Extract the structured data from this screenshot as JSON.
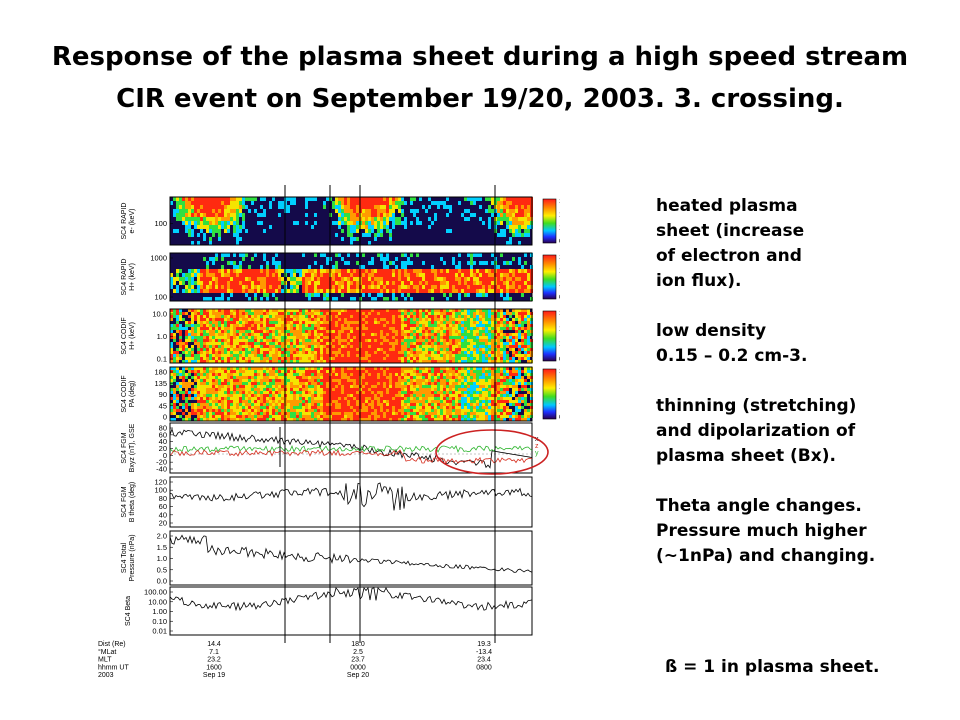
{
  "title": {
    "line1": "Response of the plasma sheet during a high speed stream",
    "line2": "CIR event on September 19/20, 2003. 3. crossing."
  },
  "notes": [
    {
      "lines": [
        "heated plasma",
        "sheet (increase",
        "of electron and",
        "ion flux)."
      ]
    },
    {
      "lines": [
        "low density",
        "0.15 – 0.2 cm-3."
      ]
    },
    {
      "lines": [
        "thinning (stretching)",
        "and dipolarization of",
        "plasma sheet (Bx)."
      ]
    },
    {
      "lines": [
        "Theta angle changes.",
        "Pressure much higher",
        "(~1nPa) and changing."
      ]
    }
  ],
  "beta_note": "ß = 1 in plasma sheet.",
  "figure": {
    "panels": [
      {
        "label": [
          "SC4 RAPID",
          "e- (keV)"
        ],
        "kind": "spectrogram",
        "ticks": [
          "100"
        ],
        "colorbar": {
          "ticks": [
            "100.0",
            "10.0",
            "1.0",
            "0.1"
          ],
          "unit": "ccm²-s-sr-keV"
        }
      },
      {
        "label": [
          "SC4 RAPID",
          "H+ (keV)"
        ],
        "kind": "spectrogram",
        "ticks": [
          "1000",
          "100"
        ],
        "colorbar": {
          "ticks": [
            "100.0",
            "10.0",
            "1.0",
            "0.1"
          ],
          "unit": "ccm²-s-sr-keV"
        }
      },
      {
        "label": [
          "SC4 CODIF",
          "H+ (keV)"
        ],
        "kind": "spectrogram",
        "ticks": [
          "10.0",
          "1.0",
          "0.1"
        ],
        "colorbar": {
          "ticks": [
            "100.0",
            "10.0",
            "1.0",
            "0.1"
          ],
          "unit": "ccm²-s-sr-keV"
        }
      },
      {
        "label": [
          "SC4 CODIF",
          "PA (deg)"
        ],
        "kind": "spectrogram",
        "ticks": [
          "180",
          "135",
          "90",
          "45",
          "0"
        ],
        "colorbar": {
          "ticks": [
            "100.0",
            "10.0",
            "1.0",
            "0.1"
          ],
          "unit": "ccm²-s-sr-keV"
        }
      },
      {
        "label": [
          "SC4 FGM",
          "Bxyz (nT), GSE"
        ],
        "kind": "line",
        "ticks": [
          "80",
          "60",
          "40",
          "20",
          "0",
          "-20",
          "-40"
        ],
        "side_labels": [
          "x",
          "z",
          "y"
        ]
      },
      {
        "label": [
          "SC4 FGM",
          "B theta (deg)"
        ],
        "kind": "line",
        "ticks": [
          "120",
          "100",
          "80",
          "60",
          "40",
          "20"
        ]
      },
      {
        "label": [
          "SC4 Total",
          "Pressure (nPa)"
        ],
        "kind": "line",
        "ticks": [
          "2.0",
          "1.5",
          "1.0",
          "0.5",
          "0.0"
        ]
      },
      {
        "label": [
          "SC4 Beta"
        ],
        "kind": "line",
        "ticks": [
          "100.00",
          "10.00",
          "1.00",
          "0.10",
          "0.01"
        ]
      }
    ],
    "footer_labels": [
      "Dist (Re)",
      "°MLat",
      "MLT",
      "hhmm UT",
      "2003"
    ],
    "footer_columns": [
      {
        "values": [
          "14.4",
          "7.1",
          "23.2",
          "1600",
          "Sep 19"
        ]
      },
      {
        "values": [
          "18.0",
          "2.5",
          "23.7",
          "0000",
          "Sep 20"
        ]
      },
      {
        "values": [
          "19.3",
          "-13.4",
          "23.4",
          "0800",
          ""
        ]
      }
    ],
    "colors": {
      "Bx": "#000000",
      "By": "#2db52d",
      "Bz": "#d62d1e",
      "highlight_ellipse": "#cc2222",
      "spectrogram_background": "#140a4a"
    }
  }
}
